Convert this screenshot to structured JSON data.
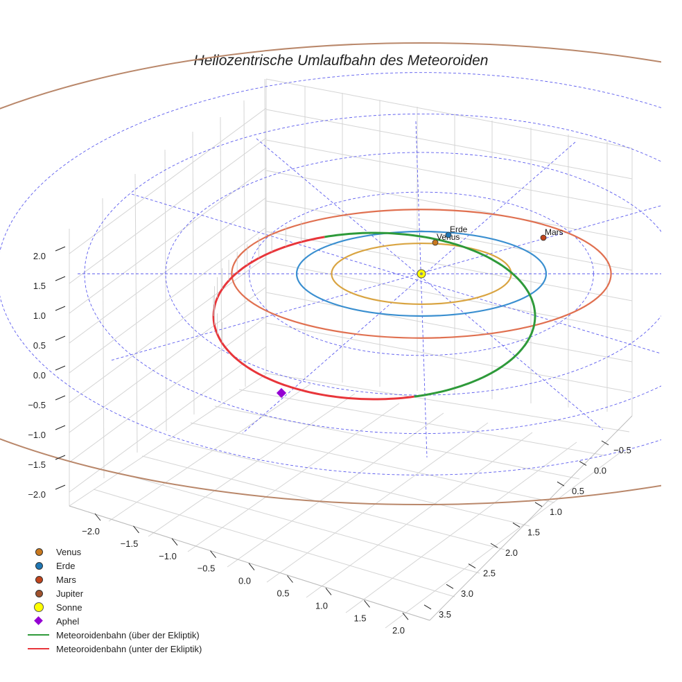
{
  "chart_data": {
    "type": "scatter3d",
    "title": "Heliozentrische Umlaufbahn des Meteoroiden",
    "axes": {
      "z_ticks": [
        "2.0",
        "1.5",
        "1.0",
        "0.5",
        "0.0",
        "−0.5",
        "−1.0",
        "−1.5",
        "−2.0"
      ],
      "x_ticks": [
        "−2.0",
        "−1.5",
        "−1.0",
        "−0.5",
        "0.0",
        "0.5",
        "1.0",
        "1.5",
        "2.0"
      ],
      "y_ticks": [
        "−0.5",
        "0.0",
        "0.5",
        "1.0",
        "1.5",
        "2.0",
        "2.5",
        "3.0",
        "3.5"
      ]
    },
    "planets": [
      {
        "name": "Venus",
        "label": "Venus",
        "radius_au": 0.72,
        "color": "#c8781e"
      },
      {
        "name": "Erde",
        "label": "Erde",
        "radius_au": 1.0,
        "color": "#1f77b4"
      },
      {
        "name": "Mars",
        "label": "Mars",
        "radius_au": 1.52,
        "color": "#c1441c"
      },
      {
        "name": "Jupiter",
        "label": "",
        "radius_au": 5.2,
        "color": "#a0522d"
      }
    ],
    "orbit_colors": {
      "Venus": "#d9a441",
      "Erde": "#3a8fd0",
      "Mars": "#e07050",
      "Jupiter": "#b9876a"
    },
    "sun": {
      "name": "Sonne",
      "color": "#ffff00"
    },
    "aphel": {
      "name": "Aphel",
      "color": "#9400d3"
    },
    "meteoroid": {
      "above": {
        "name": "Meteoroidenbahn (über der Ekliptik)",
        "color": "#2e9a3a"
      },
      "below": {
        "name": "Meteoroidenbahn (unter der Ekliptik)",
        "color": "#e8353a"
      }
    },
    "grid": true,
    "ecliptic_grid_color": "#5a5aee",
    "legend_position": "bottom-left"
  },
  "legend": [
    {
      "label": "Venus",
      "kind": "dot",
      "color": "#c8781e"
    },
    {
      "label": "Erde",
      "kind": "dot",
      "color": "#1f77b4"
    },
    {
      "label": "Mars",
      "kind": "dot",
      "color": "#c1441c"
    },
    {
      "label": "Jupiter",
      "kind": "dot",
      "color": "#a0522d"
    },
    {
      "label": "Sonne",
      "kind": "bigdot",
      "color": "#ffff00"
    },
    {
      "label": "Aphel",
      "kind": "diamond",
      "color": "#9400d3"
    },
    {
      "label": "Meteoroidenbahn (über der Ekliptik)",
      "kind": "line",
      "color": "#2e9a3a"
    },
    {
      "label": "Meteoroidenbahn (unter der Ekliptik)",
      "kind": "line",
      "color": "#e8353a"
    }
  ]
}
